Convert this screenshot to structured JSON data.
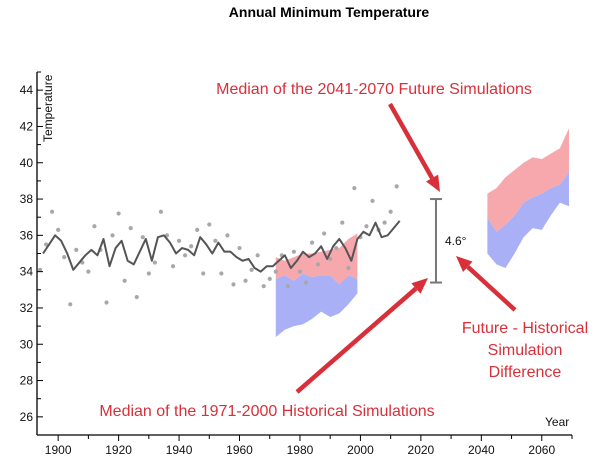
{
  "chart_data": {
    "type": "line",
    "title": "Annual Minimum Temperature",
    "xlabel": "Year",
    "ylabel": "Temperature",
    "xlim": [
      1893,
      2070
    ],
    "ylim": [
      25,
      45
    ],
    "x_ticks": [
      1900,
      1920,
      1940,
      1960,
      1980,
      2000,
      2020,
      2040,
      2060
    ],
    "y_ticks": [
      26,
      28,
      30,
      32,
      34,
      36,
      38,
      40,
      42,
      44
    ],
    "grid": false,
    "colors": {
      "observed_line": "#555555",
      "observed_points": "#a8a8a8",
      "future_band": "#f7a8ac",
      "historical_band": "#a9b0f5",
      "annotation": "#d8303a",
      "bracket": "#777777"
    },
    "series": [
      {
        "kind": "smoothed_line",
        "x": [
          1895,
          1897,
          1899,
          1901,
          1903,
          1905,
          1907,
          1909,
          1911,
          1913,
          1915,
          1917,
          1919,
          1921,
          1923,
          1925,
          1927,
          1929,
          1931,
          1933,
          1935,
          1937,
          1939,
          1941,
          1943,
          1945,
          1947,
          1949,
          1951,
          1953,
          1955,
          1957,
          1959,
          1961,
          1963,
          1965,
          1967,
          1969,
          1971,
          1973,
          1975,
          1977,
          1979,
          1981,
          1983,
          1985,
          1987,
          1989,
          1991,
          1993,
          1995,
          1997,
          1999,
          2001,
          2003,
          2005,
          2007,
          2009,
          2011,
          2013
        ],
        "values": [
          35.0,
          35.5,
          36.0,
          35.7,
          35.0,
          34.1,
          34.5,
          34.9,
          35.2,
          34.9,
          35.8,
          34.3,
          35.3,
          35.7,
          34.6,
          34.4,
          35.1,
          35.8,
          34.6,
          35.9,
          36.0,
          35.6,
          35.0,
          35.3,
          35.2,
          34.9,
          35.9,
          35.5,
          35.0,
          35.6,
          35.1,
          35.1,
          34.8,
          34.6,
          34.7,
          34.2,
          34.0,
          34.3,
          34.3,
          34.6,
          34.9,
          34.2,
          34.6,
          35.1,
          34.8,
          35.0,
          35.4,
          34.7,
          35.4,
          35.8,
          35.3,
          34.6,
          35.8,
          36.2,
          36.0,
          36.7,
          35.9,
          36.0,
          36.4,
          36.8
        ]
      },
      {
        "kind": "scatter",
        "x": [
          1894,
          1896,
          1898,
          1900,
          1902,
          1904,
          1906,
          1908,
          1910,
          1912,
          1914,
          1916,
          1918,
          1920,
          1922,
          1924,
          1926,
          1928,
          1930,
          1932,
          1934,
          1936,
          1938,
          1940,
          1942,
          1944,
          1946,
          1948,
          1950,
          1952,
          1954,
          1956,
          1958,
          1960,
          1962,
          1964,
          1966,
          1968,
          1970,
          1972,
          1974,
          1976,
          1978,
          1980,
          1982,
          1984,
          1986,
          1988,
          1990,
          1992,
          1994,
          1996,
          1998,
          2000,
          2002,
          2004,
          2006,
          2008,
          2010,
          2012
        ],
        "values": [
          34.1,
          35.5,
          37.3,
          36.3,
          34.8,
          32.2,
          35.2,
          34.5,
          34.0,
          36.5,
          35.2,
          32.3,
          36.0,
          37.2,
          33.5,
          36.4,
          32.6,
          35.9,
          33.9,
          34.5,
          37.3,
          36.0,
          34.3,
          35.7,
          34.9,
          35.4,
          36.3,
          33.9,
          36.6,
          35.7,
          33.9,
          36.0,
          33.3,
          35.3,
          33.5,
          34.1,
          34.9,
          33.2,
          33.6,
          34.0,
          34.9,
          33.2,
          35.1,
          34.0,
          33.4,
          35.6,
          34.4,
          36.1,
          34.7,
          35.3,
          36.7,
          34.2,
          38.6,
          35.9,
          36.5,
          37.9,
          36.3,
          36.7,
          37.3,
          38.7
        ]
      },
      {
        "kind": "band",
        "name": "Historical Simulations",
        "x": [
          1972,
          1975,
          1978,
          1981,
          1984,
          1987,
          1990,
          1993,
          1996,
          1999
        ],
        "upper": [
          33.6,
          33.8,
          33.5,
          33.9,
          33.7,
          33.8,
          33.8,
          33.3,
          33.8,
          33.6
        ],
        "lower": [
          30.4,
          30.8,
          31.0,
          31.1,
          31.4,
          31.8,
          31.5,
          31.7,
          32.2,
          32.8
        ]
      },
      {
        "kind": "band",
        "name": "Future Simulations",
        "x": [
          1972,
          1975,
          1978,
          1981,
          1984,
          1987,
          1990,
          1993,
          1996,
          1999
        ],
        "upper": [
          34.8,
          34.6,
          34.8,
          35.0,
          35.0,
          35.1,
          35.2,
          35.3,
          35.8,
          36.1
        ],
        "lower": [
          33.6,
          33.8,
          33.5,
          33.9,
          33.7,
          33.8,
          33.8,
          33.3,
          33.8,
          33.6
        ]
      },
      {
        "kind": "band",
        "name": "Historical Simulations",
        "x": [
          2042,
          2045,
          2048,
          2051,
          2054,
          2057,
          2060,
          2063,
          2066,
          2069
        ],
        "upper": [
          37.0,
          36.2,
          36.6,
          37.1,
          37.8,
          38.1,
          38.3,
          38.6,
          38.8,
          39.5
        ],
        "lower": [
          35.0,
          34.4,
          34.2,
          35.0,
          35.9,
          36.4,
          36.3,
          37.1,
          37.8,
          37.6
        ]
      },
      {
        "kind": "band",
        "name": "Future Simulations",
        "x": [
          2042,
          2045,
          2048,
          2051,
          2054,
          2057,
          2060,
          2063,
          2066,
          2069
        ],
        "upper": [
          38.3,
          38.6,
          39.2,
          39.6,
          40.0,
          40.3,
          40.2,
          40.5,
          40.8,
          41.9
        ],
        "lower": [
          37.0,
          36.2,
          36.6,
          37.1,
          37.8,
          38.1,
          38.3,
          38.6,
          38.8,
          39.5
        ]
      }
    ],
    "bracket": {
      "x": 2025,
      "low": 33.4,
      "high": 38.0,
      "label": "4.6°"
    },
    "annotations": [
      {
        "text": "Median of the 2041-2070 Future Simulations"
      },
      {
        "text": "Median of the 1971-2000 Historical Simulations"
      },
      {
        "lines": [
          "Future - Historical",
          "Simulation",
          "Difference"
        ]
      }
    ]
  }
}
